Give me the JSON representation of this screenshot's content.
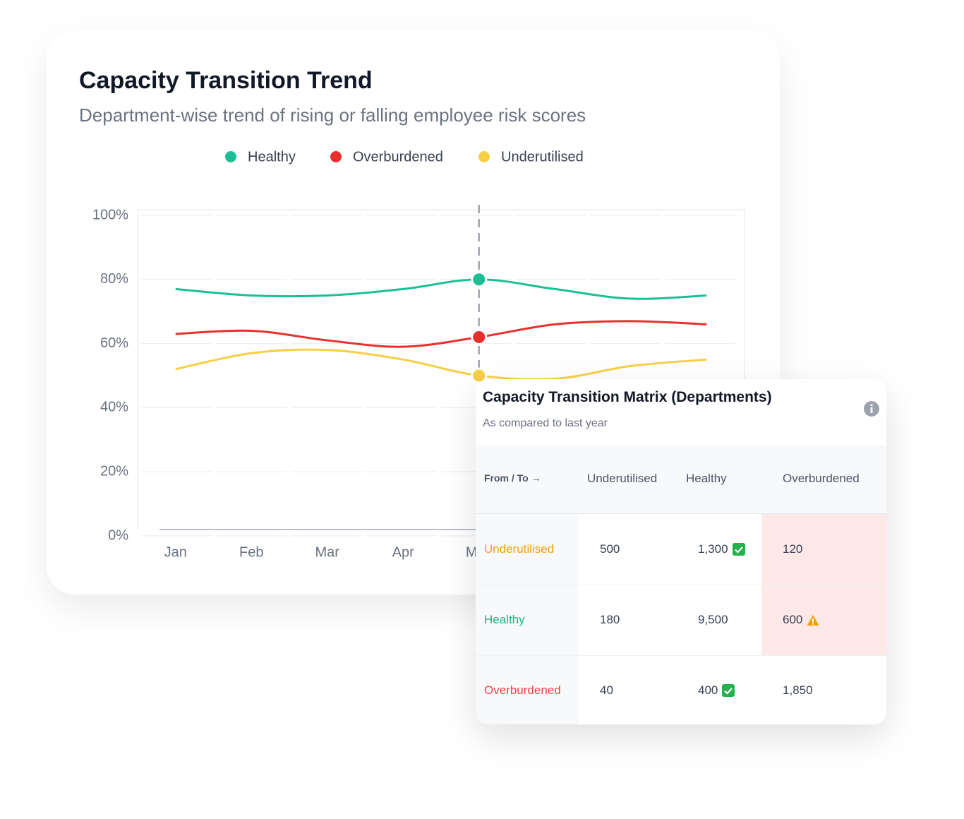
{
  "chart_data": {
    "type": "line",
    "title": "Capacity Transition Trend",
    "subtitle": "Department-wise trend of rising or falling employee risk scores",
    "categories": [
      "Jan",
      "Feb",
      "Mar",
      "Apr",
      "May",
      null,
      null,
      null
    ],
    "series": [
      {
        "name": "Healthy",
        "color": "#1bbf95",
        "values": [
          77,
          75,
          75,
          77,
          80,
          77,
          74,
          75
        ]
      },
      {
        "name": "Overburdened",
        "color": "#e8302f",
        "values": [
          63,
          64,
          61,
          59,
          62,
          66,
          67,
          66
        ]
      },
      {
        "name": "Underutilised",
        "color": "#f7cf45",
        "values": [
          52,
          57,
          58,
          55,
          50,
          49,
          53,
          55
        ]
      }
    ],
    "ylim": [
      0,
      100
    ],
    "yticks": [
      {
        "value": 0,
        "label": "0%"
      },
      {
        "value": 20,
        "label": "20%"
      },
      {
        "value": 40,
        "label": "40%"
      },
      {
        "value": 60,
        "label": "60%"
      },
      {
        "value": 80,
        "label": "80%"
      },
      {
        "value": 100,
        "label": "100%"
      }
    ],
    "grid": true,
    "highlight_index": 4
  },
  "matrix": {
    "title": "Capacity Transition Matrix (Departments)",
    "subtitle": "As compared to last year",
    "header": [
      "From / To →",
      "Underutilised",
      "Healthy",
      "Overburdened"
    ],
    "rows": [
      [
        "Underutilised",
        "500",
        "1,300",
        "120"
      ],
      [
        "Healthy",
        "180",
        "9,500",
        "600"
      ],
      [
        "Overburdened",
        "40",
        "400",
        "1,850"
      ]
    ]
  }
}
